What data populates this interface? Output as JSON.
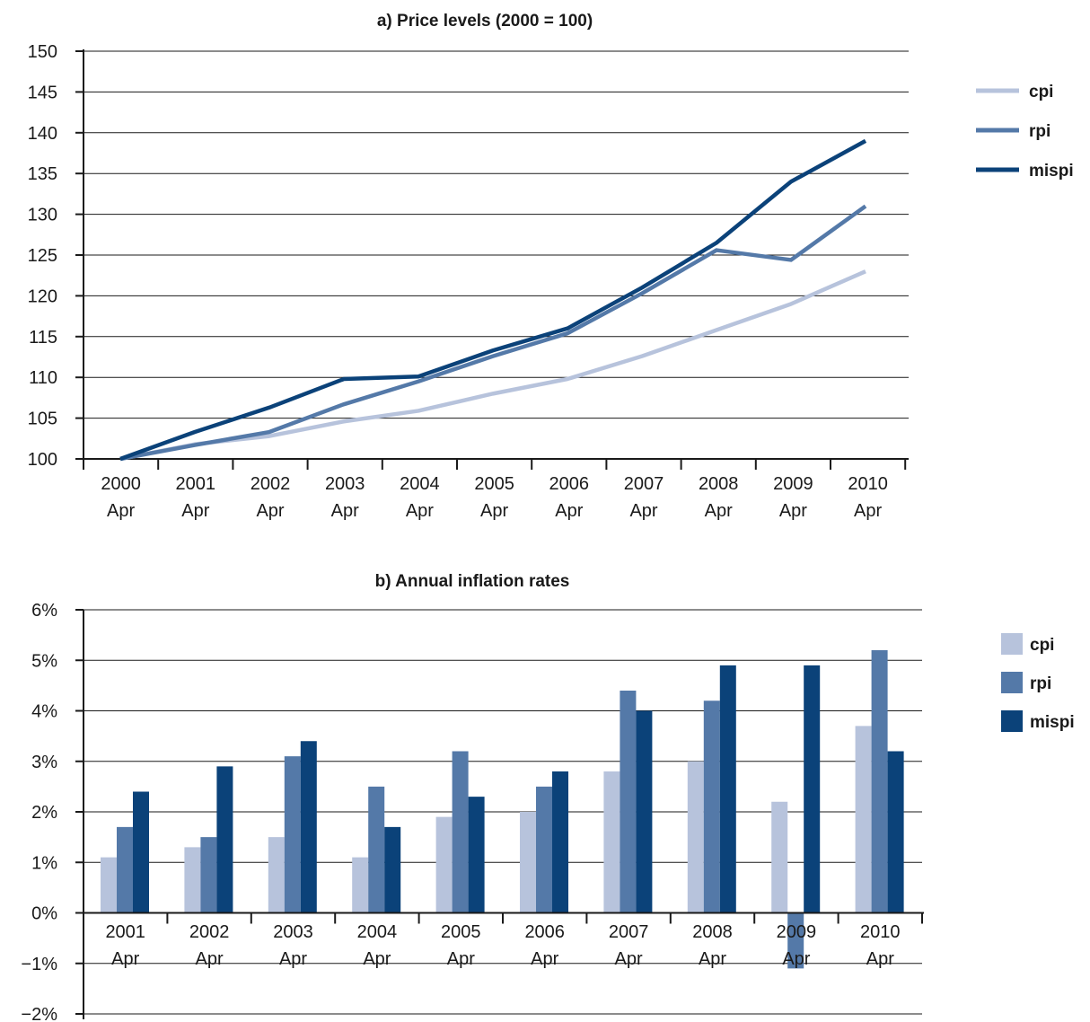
{
  "colors": {
    "cpi": "#b7c3dc",
    "rpi": "#5479a8",
    "mispi": "#0b4279"
  },
  "chart_data": [
    {
      "type": "line",
      "title": "a) Price levels  (2000 = 100)",
      "categories": [
        [
          "2000",
          "Apr"
        ],
        [
          "2001",
          "Apr"
        ],
        [
          "2002",
          "Apr"
        ],
        [
          "2003",
          "Apr"
        ],
        [
          "2004",
          "Apr"
        ],
        [
          "2005",
          "Apr"
        ],
        [
          "2006",
          "Apr"
        ],
        [
          "2007",
          "Apr"
        ],
        [
          "2008",
          "Apr"
        ],
        [
          "2009",
          "Apr"
        ],
        [
          "2010",
          "Apr"
        ]
      ],
      "yticks": [
        "100",
        "105",
        "110",
        "115",
        "120",
        "125",
        "130",
        "135",
        "140",
        "145",
        "150"
      ],
      "ylim": [
        100,
        150
      ],
      "grid": true,
      "legend_position": "right",
      "series": [
        {
          "name": "cpi",
          "values": [
            100,
            101.8,
            102.8,
            104.6,
            105.9,
            108.0,
            109.8,
            112.6,
            115.8,
            119.0,
            123.0
          ]
        },
        {
          "name": "rpi",
          "values": [
            100,
            101.7,
            103.3,
            106.7,
            109.5,
            112.6,
            115.4,
            120.3,
            125.6,
            124.4,
            131.0
          ]
        },
        {
          "name": "mispi",
          "values": [
            100,
            103.3,
            106.3,
            109.8,
            110.1,
            113.3,
            116.0,
            121.0,
            126.5,
            134.0,
            139.0
          ]
        }
      ]
    },
    {
      "type": "bar",
      "title": "b) Annual inflation rates",
      "categories": [
        [
          "2001",
          "Apr"
        ],
        [
          "2002",
          "Apr"
        ],
        [
          "2003",
          "Apr"
        ],
        [
          "2004",
          "Apr"
        ],
        [
          "2005",
          "Apr"
        ],
        [
          "2006",
          "Apr"
        ],
        [
          "2007",
          "Apr"
        ],
        [
          "2008",
          "Apr"
        ],
        [
          "2009",
          "Apr"
        ],
        [
          "2010",
          "Apr"
        ]
      ],
      "yticks": [
        "6%",
        "5%",
        "4%",
        "3%",
        "2%",
        "1%",
        "0%",
        "−1%",
        "−2%"
      ],
      "ylim": [
        -2,
        6
      ],
      "grid": true,
      "legend_position": "right",
      "series": [
        {
          "name": "cpi",
          "values": [
            1.1,
            1.3,
            1.5,
            1.1,
            1.9,
            2.0,
            2.8,
            3.0,
            2.2,
            3.7
          ]
        },
        {
          "name": "rpi",
          "values": [
            1.7,
            1.5,
            3.1,
            2.5,
            3.2,
            2.5,
            4.4,
            4.2,
            -1.1,
            5.2
          ]
        },
        {
          "name": "mispi",
          "values": [
            2.4,
            2.9,
            3.4,
            1.7,
            2.3,
            2.8,
            4.0,
            4.9,
            4.9,
            3.2
          ]
        }
      ]
    }
  ]
}
